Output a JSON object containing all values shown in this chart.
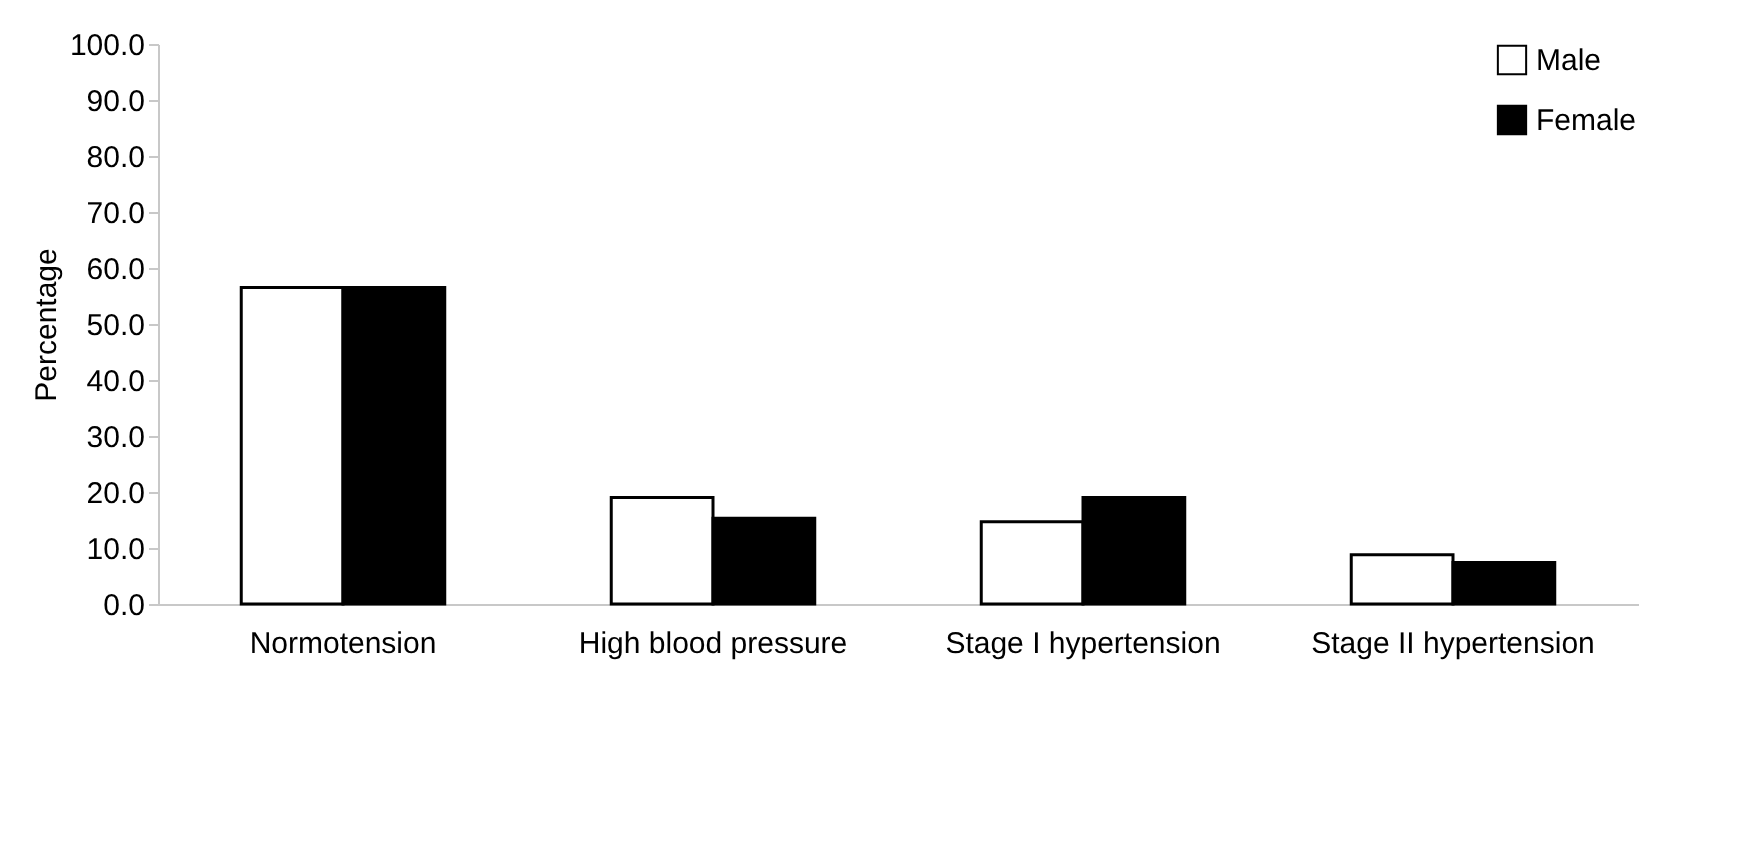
{
  "chart_data": {
    "type": "bar",
    "ylabel": "Percentage",
    "categories": [
      "Normotension",
      "High blood pressure",
      "Stage I hypertension",
      "Stage II hypertension"
    ],
    "series": [
      {
        "name": "Male",
        "color": "#ffffff",
        "values": [
          56.5,
          19.0,
          14.7,
          8.8
        ]
      },
      {
        "name": "Female",
        "color": "#000000",
        "values": [
          56.5,
          15.3,
          19.0,
          7.4
        ]
      }
    ],
    "ylim": [
      0,
      100
    ],
    "yticks": [
      {
        "value": 0,
        "label": "0.0"
      },
      {
        "value": 10,
        "label": "10.0"
      },
      {
        "value": 20,
        "label": "20.0"
      },
      {
        "value": 30,
        "label": "30.0"
      },
      {
        "value": 40,
        "label": "40.0"
      },
      {
        "value": 50,
        "label": "50.0"
      },
      {
        "value": 60,
        "label": "60.0"
      },
      {
        "value": 70,
        "label": "70.0"
      },
      {
        "value": 80,
        "label": "80.0"
      },
      {
        "value": 90,
        "label": "90.0"
      },
      {
        "value": 100,
        "label": "100.0"
      }
    ],
    "grid": false,
    "legend": "top right"
  }
}
